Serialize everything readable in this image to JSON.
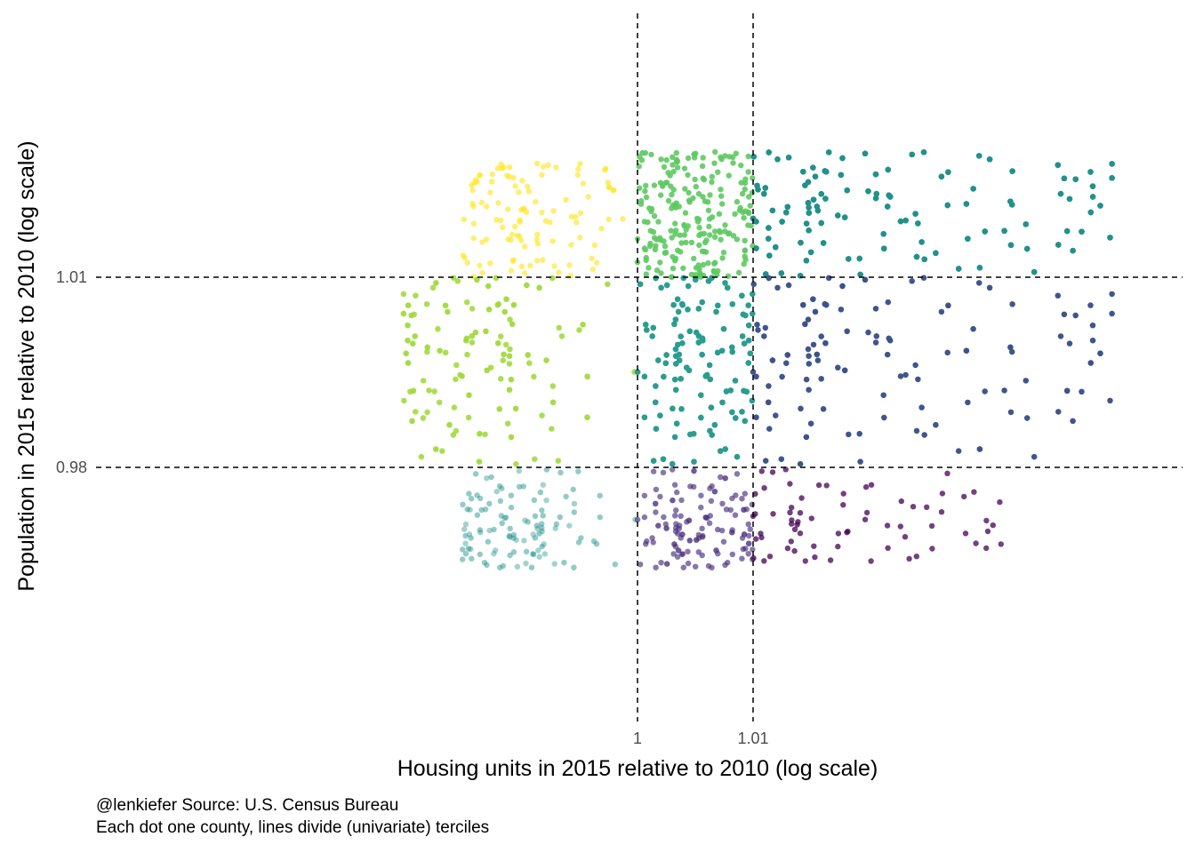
{
  "chart_data": {
    "type": "scatter",
    "title": "",
    "xlabel": "Housing units in 2015 relative to 2010 (log scale)",
    "ylabel": "Population in 2015 relative to 2010 (log scale)",
    "x_scale": "log",
    "y_scale": "log",
    "xlim": [
      0.975,
      1.043
    ],
    "ylim": [
      0.962,
      1.032
    ],
    "x_ticks": [
      1,
      1.01
    ],
    "x_tick_labels": [
      "1",
      "1.01"
    ],
    "y_ticks": [
      0.98,
      1.01
    ],
    "y_tick_labels": [
      "0.98",
      "1.01"
    ],
    "grid": false,
    "x_cutoffs": [
      1.0,
      1.01
    ],
    "y_cutoffs": [
      0.98,
      1.01
    ],
    "legend": "none",
    "caption_lines": [
      "@lenkiefer Source: U.S. Census Bureau",
      "Each dot one county, lines divide (univariate) terciles"
    ],
    "groups": [
      {
        "x_tercile": "low",
        "y_tercile": "high",
        "color": "#fde725",
        "opacity": 0.65,
        "x_range": [
          0.985,
          1.0
        ],
        "y_range": [
          1.01,
          1.0285
        ],
        "count": 110
      },
      {
        "x_tercile": "mid",
        "y_tercile": "high",
        "color": "#5ec962",
        "opacity": 0.9,
        "x_range": [
          1.0,
          1.01
        ],
        "y_range": [
          1.01,
          1.0303
        ],
        "count": 220
      },
      {
        "x_tercile": "high",
        "y_tercile": "high",
        "color": "#21918c",
        "opacity": 1.0,
        "x_range": [
          1.01,
          1.042
        ],
        "y_range": [
          1.01,
          1.0303
        ],
        "count": 500
      },
      {
        "x_tercile": "low",
        "y_tercile": "mid",
        "color": "#a0da39",
        "opacity": 0.5,
        "x_range": [
          0.98,
          1.0
        ],
        "y_range": [
          0.98,
          1.01
        ],
        "count": 380
      },
      {
        "x_tercile": "mid",
        "y_tercile": "mid",
        "color": "#2a9d8f",
        "opacity": 0.6,
        "x_range": [
          1.0,
          1.01
        ],
        "y_range": [
          0.98,
          1.01
        ],
        "count": 620
      },
      {
        "x_tercile": "high",
        "y_tercile": "mid",
        "color": "#3b528b",
        "opacity": 0.85,
        "x_range": [
          1.01,
          1.042
        ],
        "y_range": [
          0.98,
          1.01
        ],
        "count": 240
      },
      {
        "x_tercile": "low",
        "y_tercile": "low",
        "color": "#21918c",
        "opacity": 0.12,
        "x_range": [
          0.985,
          1.0
        ],
        "y_range": [
          0.9645,
          0.98
        ],
        "count": 520
      },
      {
        "x_tercile": "mid",
        "y_tercile": "low",
        "color": "#472d7b",
        "opacity": 0.4,
        "x_range": [
          1.0,
          1.01
        ],
        "y_range": [
          0.9645,
          0.98
        ],
        "count": 240
      },
      {
        "x_tercile": "high",
        "y_tercile": "low",
        "color": "#440154",
        "opacity": 0.75,
        "x_range": [
          1.01,
          1.032
        ],
        "y_range": [
          0.9655,
          0.98
        ],
        "count": 70
      }
    ]
  }
}
